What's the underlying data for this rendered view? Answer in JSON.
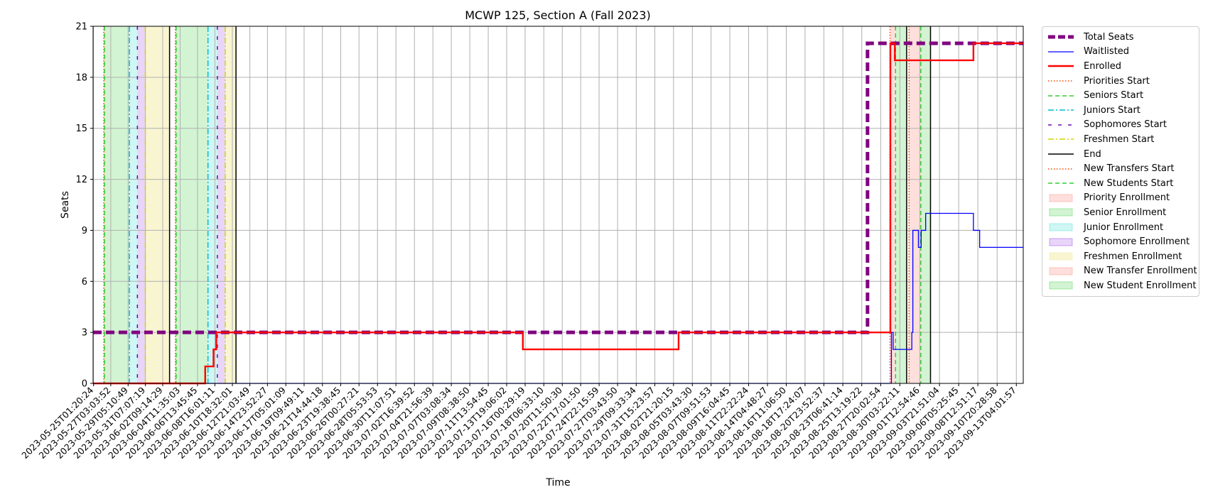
{
  "chart_data": {
    "type": "line",
    "title": "MCWP 125, Section A (Fall 2023)",
    "xlabel": "Time",
    "ylabel": "Seats",
    "ylim": [
      0,
      21
    ],
    "xlim": [
      "2023-05-25T00:00:00",
      "2023-09-14T00:00:00"
    ],
    "yticks": [
      0,
      3,
      6,
      9,
      12,
      15,
      18,
      21
    ],
    "xticks": [
      "2023-05-25T01:20:24",
      "2023-05-27T03:03:52",
      "2023-05-29T05:10:49",
      "2023-05-31T07:07:19",
      "2023-06-02T09:14:29",
      "2023-06-04T11:35:03",
      "2023-06-06T13:45:45",
      "2023-06-08T16:01:11",
      "2023-06-10T18:32:01",
      "2023-06-12T21:03:49",
      "2023-06-14T23:52:27",
      "2023-06-17T05:01:09",
      "2023-06-19T09:49:11",
      "2023-06-21T14:44:18",
      "2023-06-23T19:38:45",
      "2023-06-26T00:27:21",
      "2023-06-28T05:53:53",
      "2023-06-30T11:07:51",
      "2023-07-02T16:39:52",
      "2023-07-04T21:56:39",
      "2023-07-07T03:08:34",
      "2023-07-09T08:38:50",
      "2023-07-11T13:54:45",
      "2023-07-13T19:06:02",
      "2023-07-16T00:29:19",
      "2023-07-18T06:33:10",
      "2023-07-20T11:50:30",
      "2023-07-22T17:01:50",
      "2023-07-24T22:15:59",
      "2023-07-27T03:43:50",
      "2023-07-29T09:33:34",
      "2023-07-31T15:23:57",
      "2023-08-02T21:20:15",
      "2023-08-05T03:43:30",
      "2023-08-07T09:51:53",
      "2023-08-09T16:04:45",
      "2023-08-11T22:22:24",
      "2023-08-14T04:48:27",
      "2023-08-16T11:06:50",
      "2023-08-18T17:24:07",
      "2023-08-20T23:52:37",
      "2023-08-23T06:41:14",
      "2023-08-25T13:19:22",
      "2023-08-27T20:02:54",
      "2023-08-30T03:22:11",
      "2023-09-01T12:54:46",
      "2023-09-03T21:51:04",
      "2023-09-06T05:25:45",
      "2023-09-08T12:51:17",
      "2023-09-10T20:28:58",
      "2023-09-13T04:01:57"
    ],
    "grid": true,
    "legend_position": "outside right",
    "series": [
      {
        "name": "Total Seats",
        "style": "dashed",
        "color": "#800080",
        "x": [
          "2023-05-25T00:00:00",
          "2023-08-26T06:00:00",
          "2023-08-26T06:00:00",
          "2023-09-14T00:00:00"
        ],
        "y": [
          3,
          3,
          20,
          20
        ]
      },
      {
        "name": "Waitlisted",
        "style": "solid",
        "color": "#0000ff",
        "x": [
          "2023-05-25T00:00:00",
          "2023-08-29T03:00:00",
          "2023-08-29T03:00:00",
          "2023-08-29T08:00:00",
          "2023-08-29T08:00:00",
          "2023-08-29T13:00:00",
          "2023-08-29T13:00:00",
          "2023-08-31T14:00:00",
          "2023-08-31T14:00:00",
          "2023-08-31T17:00:00",
          "2023-08-31T17:00:00",
          "2023-09-01T09:00:00",
          "2023-09-01T09:00:00",
          "2023-09-01T17:00:00",
          "2023-09-01T17:00:00",
          "2023-09-02T06:00:00",
          "2023-09-02T06:00:00",
          "2023-09-08T00:00:00",
          "2023-09-08T00:00:00",
          "2023-09-08T18:00:00",
          "2023-09-08T18:00:00",
          "2023-09-14T00:00:00"
        ],
        "y": [
          0,
          0,
          3,
          3,
          2,
          2,
          2,
          2,
          3,
          3,
          9,
          9,
          8,
          8,
          9,
          9,
          10,
          10,
          9,
          9,
          8,
          8
        ]
      },
      {
        "name": "Enrolled",
        "style": "solid",
        "color": "#ff0000",
        "x": [
          "2023-05-25T00:00:00",
          "2023-06-07T12:00:00",
          "2023-06-07T12:00:00",
          "2023-06-08T12:00:00",
          "2023-06-08T12:00:00",
          "2023-06-08T20:00:00",
          "2023-06-08T20:00:00",
          "2023-06-09T04:00:00",
          "2023-06-09T04:00:00",
          "2023-07-15T18:00:00",
          "2023-07-15T18:00:00",
          "2023-08-03T12:00:00",
          "2023-08-03T12:00:00",
          "2023-08-29T00:00:00",
          "2023-08-29T00:00:00",
          "2023-08-29T13:00:00",
          "2023-08-29T13:00:00",
          "2023-09-08T00:00:00",
          "2023-09-08T00:00:00",
          "2023-09-14T00:00:00"
        ],
        "y": [
          0,
          0,
          1,
          1,
          2,
          2,
          3,
          3,
          3,
          3,
          2,
          2,
          3,
          3,
          20,
          20,
          19,
          19,
          20,
          20
        ]
      }
    ],
    "markers": [
      {
        "name": "Priorities Start",
        "style": "dotted",
        "color": "#ff4500",
        "x": [
          "2023-05-26T07:00:00",
          "2023-06-03T22:00:00",
          "2023-08-28T23:00:00"
        ]
      },
      {
        "name": "Seniors Start",
        "style": "dashed",
        "color": "#32cd32",
        "x": [
          "2023-05-26T09:00:00",
          "2023-06-04T00:00:00",
          "2023-08-29T15:00:00"
        ]
      },
      {
        "name": "Juniors Start",
        "style": "dashdot",
        "color": "#00bcd4",
        "x": [
          "2023-05-29T09:00:00",
          "2023-06-07T20:00:00"
        ]
      },
      {
        "name": "Sophomores Start",
        "style": "loosedash",
        "color": "#6a0dad",
        "x": [
          "2023-05-30T08:00:00",
          "2023-06-08T23:00:00"
        ]
      },
      {
        "name": "Freshmen Start",
        "style": "dashdot",
        "color": "#d4d400",
        "x": [
          "2023-05-31T07:00:00",
          "2023-06-09T22:00:00"
        ]
      },
      {
        "name": "End",
        "style": "solid",
        "color": "#000000",
        "x": [
          "2023-06-03T05:00:00",
          "2023-06-11T05:00:00",
          "2023-08-30T23:00:00",
          "2023-09-02T20:00:00"
        ]
      },
      {
        "name": "New Transfers Start",
        "style": "dotted",
        "color": "#ff4500",
        "x": [
          "2023-08-31T06:00:00"
        ]
      },
      {
        "name": "New Students Start",
        "style": "dashed",
        "color": "#32cd32",
        "x": [
          "2023-09-01T16:00:00"
        ]
      }
    ],
    "spans": [
      {
        "name": "Priority Enrollment",
        "color": "#fa8072",
        "alpha": 0.25,
        "ranges": [
          [
            "2023-05-26T07:00:00",
            "2023-05-26T09:00:00"
          ],
          [
            "2023-06-03T22:00:00",
            "2023-06-04T00:00:00"
          ],
          [
            "2023-08-28T23:00:00",
            "2023-08-29T15:00:00"
          ]
        ]
      },
      {
        "name": "Senior Enrollment",
        "color": "#32cd32",
        "alpha": 0.22,
        "ranges": [
          [
            "2023-05-26T09:00:00",
            "2023-05-29T09:00:00"
          ],
          [
            "2023-06-04T00:00:00",
            "2023-06-07T20:00:00"
          ],
          [
            "2023-08-29T15:00:00",
            "2023-08-30T23:00:00"
          ]
        ]
      },
      {
        "name": "Junior Enrollment",
        "color": "#40e0d0",
        "alpha": 0.25,
        "ranges": [
          [
            "2023-05-29T09:00:00",
            "2023-05-30T08:00:00"
          ],
          [
            "2023-06-07T20:00:00",
            "2023-06-08T23:00:00"
          ]
        ]
      },
      {
        "name": "Sophomore Enrollment",
        "color": "#8a2be2",
        "alpha": 0.2,
        "ranges": [
          [
            "2023-05-30T08:00:00",
            "2023-05-31T07:00:00"
          ],
          [
            "2023-06-08T23:00:00",
            "2023-06-09T22:00:00"
          ]
        ]
      },
      {
        "name": "Freshmen Enrollment",
        "color": "#f0e68c",
        "alpha": 0.4,
        "ranges": [
          [
            "2023-05-31T07:00:00",
            "2023-06-03T05:00:00"
          ],
          [
            "2023-06-09T22:00:00",
            "2023-06-11T05:00:00"
          ]
        ]
      },
      {
        "name": "New Transfer Enrollment",
        "color": "#fa8072",
        "alpha": 0.25,
        "ranges": [
          [
            "2023-08-31T06:00:00",
            "2023-09-01T16:00:00"
          ]
        ]
      },
      {
        "name": "New Student Enrollment",
        "color": "#32cd32",
        "alpha": 0.22,
        "ranges": [
          [
            "2023-09-01T16:00:00",
            "2023-09-02T20:00:00"
          ]
        ]
      }
    ]
  }
}
